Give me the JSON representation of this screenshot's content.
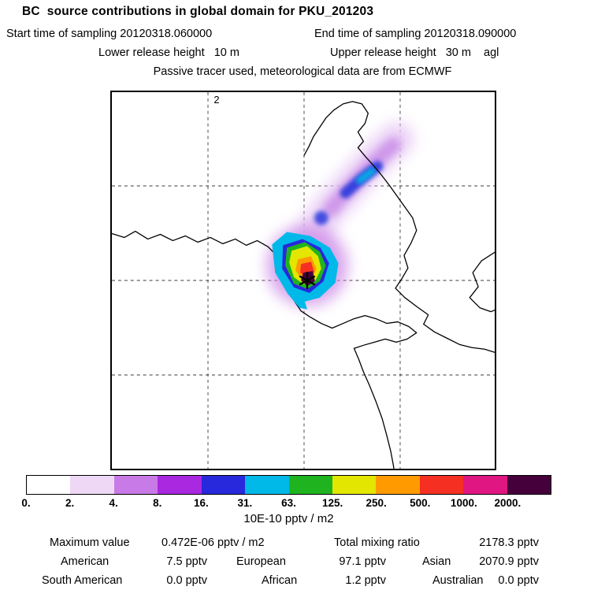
{
  "header": {
    "title": "BC  source contributions in global domain for PKU_201203",
    "start_time": "Start time of sampling 20120318.060000",
    "end_time": "End time of sampling 20120318.090000",
    "lower_release": "Lower release height   10 m",
    "upper_release": "Upper release height   30 m    agl",
    "tracer_info": "Passive tracer used, meteorological data are from ECMWF"
  },
  "map": {
    "grid_label": "2"
  },
  "colorbar": {
    "ticks": [
      "0.",
      "2.",
      "4.",
      "8.",
      "16.",
      "31.",
      "63.",
      "125.",
      "250.",
      "500.",
      "1000.",
      "2000."
    ],
    "colors": [
      "#ffffff",
      "#eed8f6",
      "#c87ae6",
      "#a928e0",
      "#2828dc",
      "#00b9e8",
      "#1fb41f",
      "#e3e600",
      "#ff9b00",
      "#f53023",
      "#e01682",
      "#45003c"
    ],
    "units": "10E-10 pptv / m2"
  },
  "stats": {
    "max_label": "Maximum value",
    "max_value": "0.472E-06 pptv / m2",
    "total_label": "Total mixing ratio",
    "total_value": "2178.3 pptv",
    "contributions": [
      {
        "label": "American",
        "value": "7.5 pptv"
      },
      {
        "label": "European",
        "value": "97.1 pptv"
      },
      {
        "label": "Asian",
        "value": "2070.9 pptv"
      },
      {
        "label": "South American",
        "value": "0.0 pptv"
      },
      {
        "label": "African",
        "value": "1.2 pptv"
      },
      {
        "label": "Australian",
        "value": "0.0 pptv"
      }
    ]
  },
  "chart_data": {
    "type": "heatmap",
    "title": "BC source contributions in global domain for PKU_201203",
    "sampling_start": "20120318.060000",
    "sampling_end": "20120318.090000",
    "lower_release_height_m": 10,
    "upper_release_height_m": 30,
    "height_reference": "agl",
    "tracer_note": "Passive tracer used, meteorological data are from ECMWF",
    "colorbar_levels": [
      0,
      2,
      4,
      8,
      16,
      31,
      63,
      125,
      250,
      500,
      1000,
      2000
    ],
    "colorbar_units": "10E-10 pptv / m2",
    "maximum_value": "0.472E-06 pptv / m2",
    "total_mixing_ratio_pptv": 2178.3,
    "source_contributions_pptv": {
      "American": 7.5,
      "European": 97.1,
      "Asian": 2070.9,
      "South American": 0.0,
      "African": 1.2,
      "Australian": 0.0
    },
    "map_annotation": "2",
    "grid": "dashed",
    "legend_position": "bottom",
    "plume": "source star near map center with concentric contours (dark core > 2000 down to faint violet trail extending northeast)"
  }
}
